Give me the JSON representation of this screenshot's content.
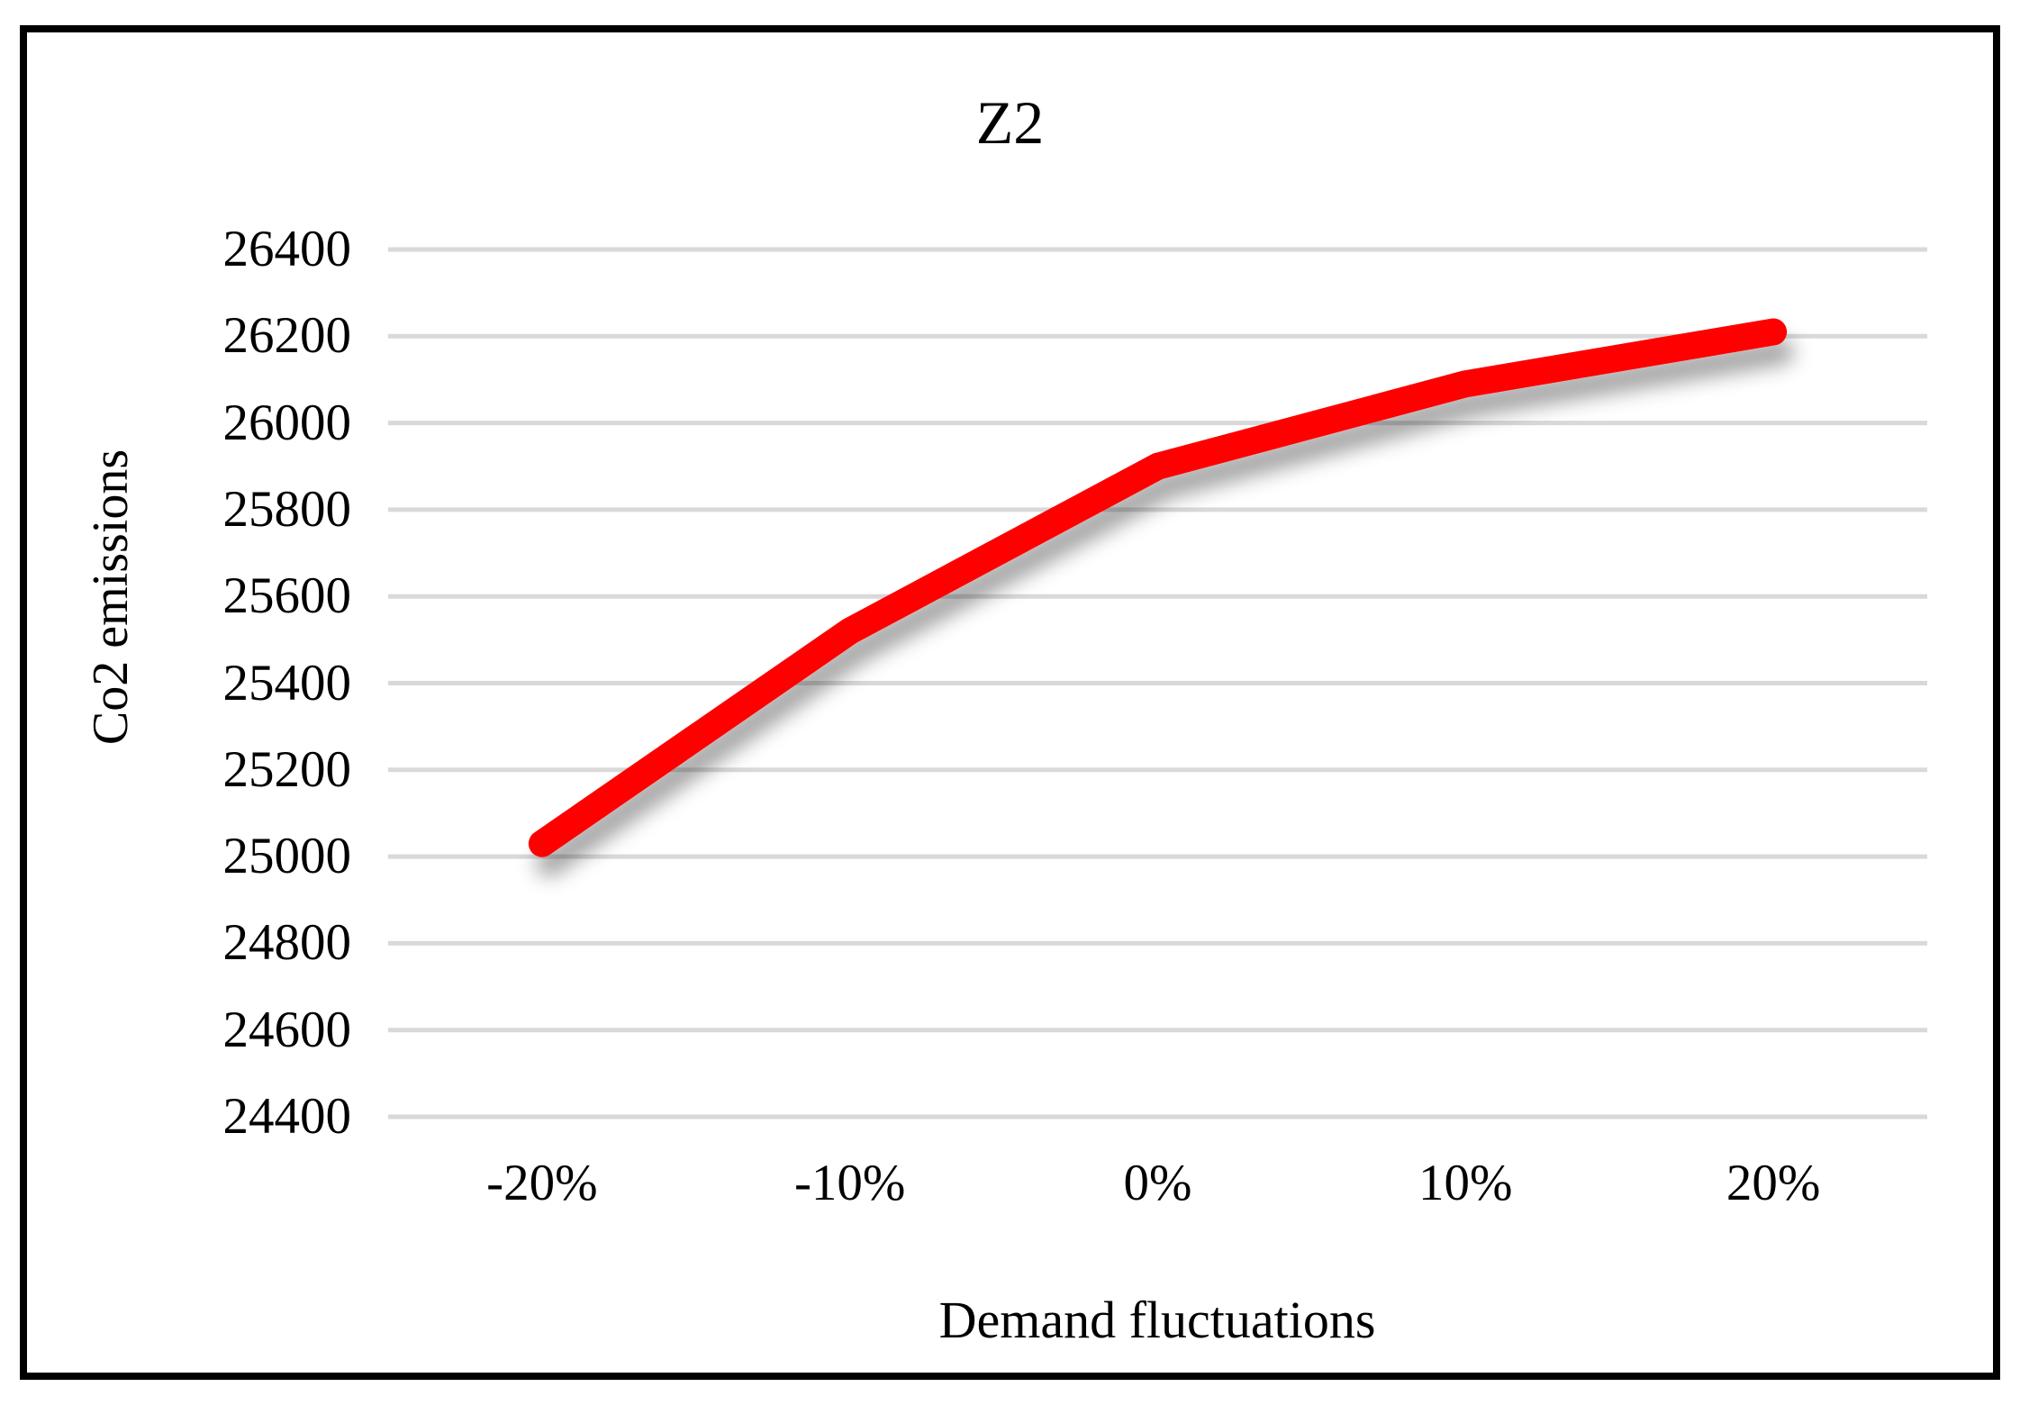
{
  "chart_data": {
    "type": "line",
    "title": "Z2",
    "xlabel": "Demand fluctuations",
    "ylabel": "Co2 emissions",
    "categories": [
      "-20%",
      "-10%",
      "0%",
      "10%",
      "20%"
    ],
    "series": [
      {
        "name": "Z2",
        "values": [
          25030,
          25520,
          25900,
          26090,
          26210
        ]
      }
    ],
    "ylim": [
      24400,
      26400
    ],
    "ytick_step": 200,
    "yticks": [
      26400,
      26200,
      26000,
      25800,
      25600,
      25400,
      25200,
      25000,
      24800,
      24600,
      24400
    ],
    "grid": true,
    "legend": "none",
    "colors": {
      "line": "#FF0000",
      "gridline": "#D9D9D9",
      "text": "#000000",
      "frame": "#000000",
      "background": "#FFFFFF"
    }
  }
}
